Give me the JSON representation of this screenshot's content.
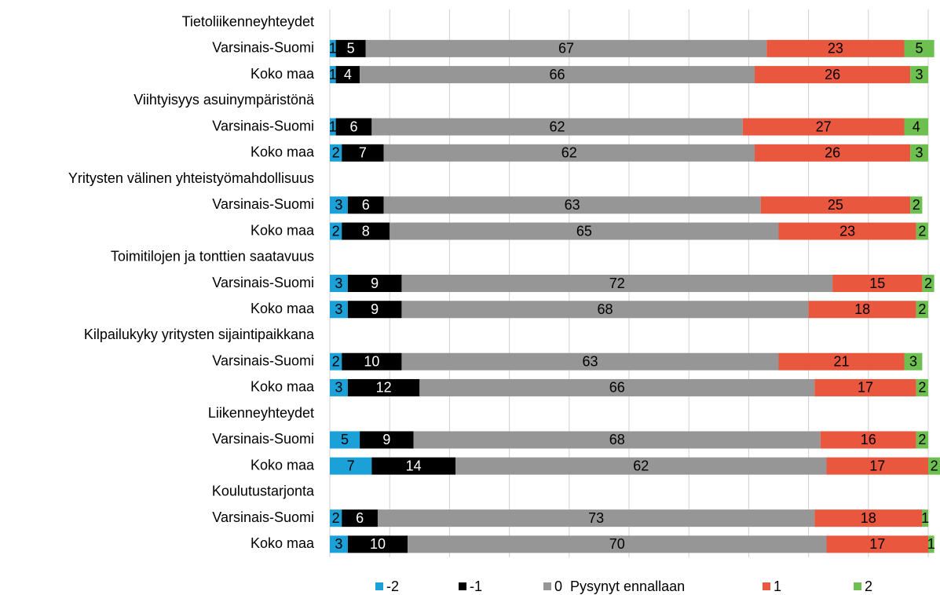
{
  "chart_data": {
    "type": "stacked-barh",
    "categories": [
      "Tietoliikenneyhteydet",
      "Varsinais-Suomi",
      "Koko maa",
      "Viihtyisyys asuinympäristönä",
      "Varsinais-Suomi",
      "Koko maa",
      "Yritysten välinen yhteistyömahdollisuus",
      "Varsinais-Suomi",
      "Koko maa",
      "Toimitilojen ja tonttien saatavuus",
      "Varsinais-Suomi",
      "Koko maa",
      "Kilpailukyky yritysten sijaintipaikkana",
      "Varsinais-Suomi",
      "Koko maa",
      "Liikenneyhteydet",
      "Varsinais-Suomi",
      "Koko maa",
      "Koulutustarjonta",
      "Varsinais-Suomi",
      "Koko maa"
    ],
    "series": [
      {
        "name": "-2",
        "color": "#1ba1d8",
        "values": [
          null,
          1,
          1,
          null,
          1,
          2,
          null,
          3,
          2,
          null,
          3,
          3,
          null,
          2,
          3,
          null,
          5,
          7,
          null,
          2,
          3
        ]
      },
      {
        "name": "-1",
        "color": "#000000",
        "values": [
          null,
          5,
          4,
          null,
          6,
          7,
          null,
          6,
          8,
          null,
          9,
          9,
          null,
          10,
          12,
          null,
          9,
          14,
          null,
          6,
          10
        ]
      },
      {
        "name": "0  Pysynyt ennallaan",
        "color": "#969696",
        "values": [
          null,
          67,
          66,
          null,
          62,
          62,
          null,
          63,
          65,
          null,
          72,
          68,
          null,
          63,
          66,
          null,
          68,
          62,
          null,
          73,
          70
        ]
      },
      {
        "name": "1",
        "color": "#e9573f",
        "values": [
          null,
          23,
          26,
          null,
          27,
          26,
          null,
          25,
          23,
          null,
          15,
          18,
          null,
          21,
          17,
          null,
          16,
          17,
          null,
          18,
          17
        ]
      },
      {
        "name": "2",
        "color": "#6dbf4f",
        "values": [
          null,
          5,
          3,
          null,
          4,
          3,
          null,
          2,
          2,
          null,
          2,
          2,
          null,
          3,
          2,
          null,
          2,
          2,
          null,
          1,
          1
        ]
      }
    ],
    "xlim": [
      0,
      100
    ],
    "xticks": [
      0,
      10,
      20,
      30,
      40,
      50,
      60,
      70,
      80,
      90,
      100
    ],
    "grid": true,
    "legend": "bottom"
  }
}
